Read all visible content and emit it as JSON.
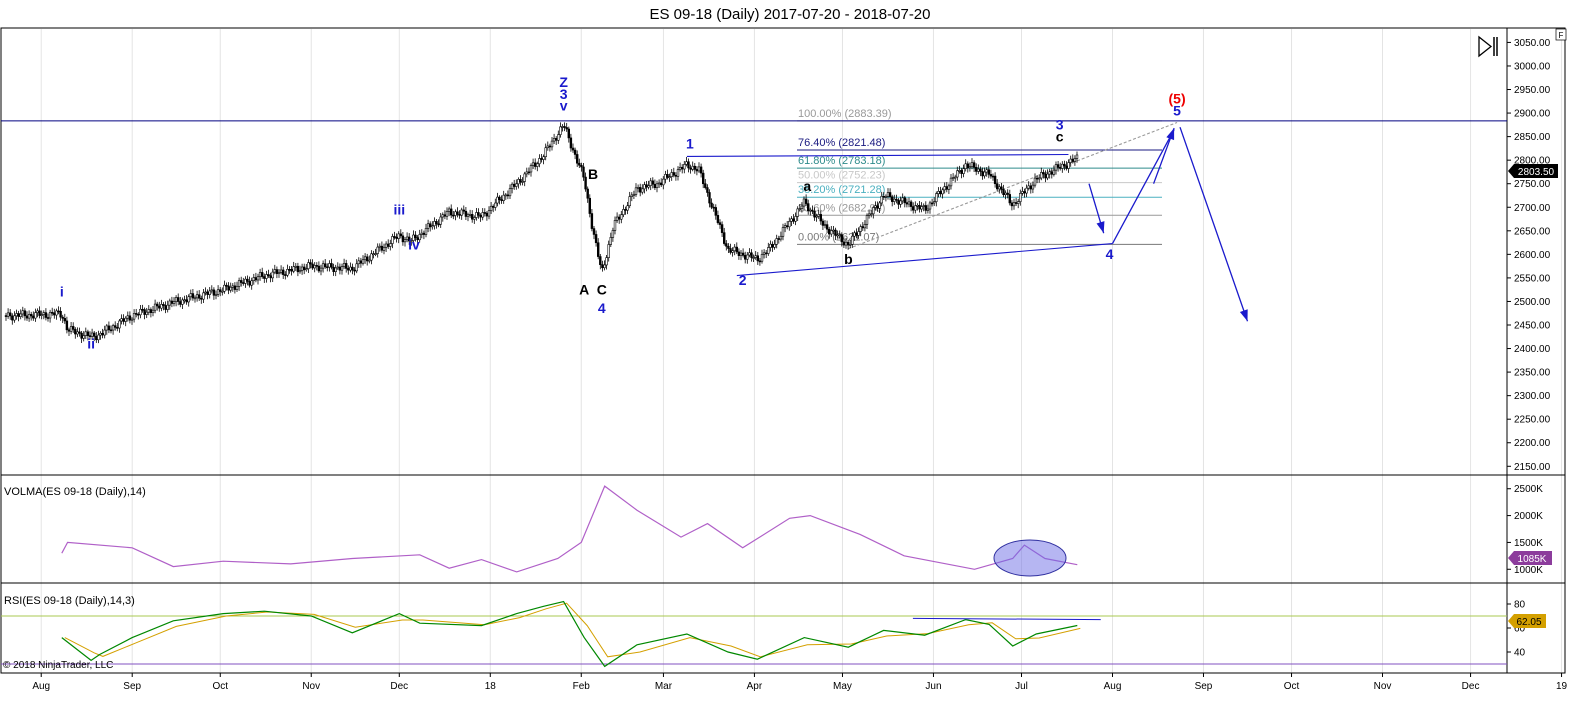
{
  "title": "ES 09-18 (Daily)  2017-07-20 - 2018-07-20",
  "copyright": "© 2018 NinjaTrader, LLC",
  "corner_icon": "F",
  "play_icon": "play-to-end-icon",
  "price_label": "2803.50",
  "volma_label": "VOLMA(ES 09-18 (Daily),14)",
  "volma_value": "1085K",
  "rsi_label": "RSI(ES 09-18 (Daily),14,3)",
  "rsi_value": "62.05",
  "colors": {
    "wave_blue": "#1a1acc",
    "wave_red": "#ee0000",
    "volma": "#b060c8",
    "rsi": "#008800",
    "rsi_avg": "#d4a000",
    "bull": "#ffffff",
    "bear": "#000000",
    "hline": "#000080"
  },
  "fib_labels": [
    {
      "level": "100.00% (2883.39)",
      "price": 2883.39,
      "color": "#999999"
    },
    {
      "level": "76.40% (2821.48)",
      "price": 2821.48,
      "color": "#1a1a80"
    },
    {
      "level": "61.80% (2783.18)",
      "price": 2783.18,
      "color": "#2e8b8b"
    },
    {
      "level": "50.00% (2752.23)",
      "price": 2752.23,
      "color": "#c8c8c8"
    },
    {
      "level": "38.20% (2721.28)",
      "price": 2721.28,
      "color": "#4ab0c0"
    },
    {
      "level": "23.60% (2682.98)",
      "price": 2682.98,
      "color": "#999999"
    },
    {
      "level": "0.00% (2621.07)",
      "price": 2621.07,
      "color": "#777777"
    }
  ],
  "chart_data": [
    {
      "type": "line",
      "title": "ES 09-18 (Daily)  2017-07-20 - 2018-07-20",
      "x_labels": [
        "Aug",
        "Sep",
        "Oct",
        "Nov",
        "Dec",
        "18",
        "Feb",
        "Mar",
        "Apr",
        "May",
        "Jun",
        "Jul",
        "Aug",
        "Sep",
        "Oct",
        "Nov",
        "Dec",
        "19"
      ],
      "y_ticks": [
        "3050.00",
        "3000.00",
        "2950.00",
        "2900.00",
        "2850.00",
        "2800.00",
        "2750.00",
        "2700.00",
        "2650.00",
        "2600.00",
        "2550.00",
        "2500.00",
        "2450.00",
        "2400.00",
        "2350.00",
        "2300.00",
        "2250.00",
        "2200.00",
        "2150.00"
      ],
      "ylim": [
        2140,
        3070
      ],
      "series": [
        {
          "values": [
            [
              "2017-07-20",
              2470
            ],
            [
              "2017-08-01",
              2472
            ],
            [
              "2017-08-08",
              2474
            ],
            [
              "2017-08-10",
              2440
            ],
            [
              "2017-08-18",
              2425
            ],
            [
              "2017-08-21",
              2430
            ],
            [
              "2017-09-01",
              2470
            ],
            [
              "2017-09-15",
              2498
            ],
            [
              "2017-10-02",
              2525
            ],
            [
              "2017-10-16",
              2555
            ],
            [
              "2017-11-01",
              2575
            ],
            [
              "2017-11-15",
              2570
            ],
            [
              "2017-12-01",
              2640
            ],
            [
              "2017-12-05",
              2628
            ],
            [
              "2017-12-18",
              2690
            ],
            [
              "2017-12-29",
              2680
            ],
            [
              "2018-01-10",
              2750
            ],
            [
              "2018-01-19",
              2810
            ],
            [
              "2018-01-26",
              2875
            ],
            [
              "2018-02-02",
              2760
            ],
            [
              "2018-02-05",
              2650
            ],
            [
              "2018-02-08",
              2560
            ],
            [
              "2018-02-12",
              2660
            ],
            [
              "2018-02-20",
              2740
            ],
            [
              "2018-02-27",
              2750
            ],
            [
              "2018-03-09",
              2790
            ],
            [
              "2018-03-13",
              2780
            ],
            [
              "2018-03-23",
              2610
            ],
            [
              "2018-04-02",
              2590
            ],
            [
              "2018-04-06",
              2610
            ],
            [
              "2018-04-18",
              2710
            ],
            [
              "2018-04-25",
              2660
            ],
            [
              "2018-05-03",
              2620
            ],
            [
              "2018-05-15",
              2725
            ],
            [
              "2018-05-29",
              2695
            ],
            [
              "2018-06-12",
              2790
            ],
            [
              "2018-06-20",
              2770
            ],
            [
              "2018-06-28",
              2705
            ],
            [
              "2018-07-06",
              2760
            ],
            [
              "2018-07-20",
              2803.5
            ]
          ]
        }
      ],
      "fib_levels": [
        2883.39,
        2821.48,
        2783.18,
        2752.23,
        2721.28,
        2682.98,
        2621.07
      ],
      "wave_labels": [
        "i",
        "ii",
        "iii",
        "iv",
        "Z",
        "3",
        "v",
        "B",
        "A",
        "C",
        "4",
        "1",
        "2",
        "a",
        "b",
        "3",
        "c",
        "4",
        "(5)",
        "5"
      ],
      "last_price": 2803.5
    },
    {
      "type": "line",
      "title": "VOLMA(ES 09-18 (Daily),14)",
      "y_ticks": [
        "2500K",
        "2000K",
        "1500K",
        "1000K"
      ],
      "ylim": [
        800,
        2700
      ],
      "series": [
        {
          "values": [
            [
              "2017-08-08",
              1300
            ],
            [
              "2017-08-10",
              1500
            ],
            [
              "2017-09-01",
              1400
            ],
            [
              "2017-09-15",
              1050
            ],
            [
              "2017-10-02",
              1150
            ],
            [
              "2017-10-25",
              1100
            ],
            [
              "2017-11-15",
              1200
            ],
            [
              "2017-12-08",
              1270
            ],
            [
              "2017-12-18",
              1020
            ],
            [
              "2017-12-29",
              1180
            ],
            [
              "2018-01-10",
              950
            ],
            [
              "2018-01-24",
              1200
            ],
            [
              "2018-02-01",
              1500
            ],
            [
              "2018-02-09",
              2550
            ],
            [
              "2018-02-20",
              2100
            ],
            [
              "2018-03-07",
              1600
            ],
            [
              "2018-03-16",
              1850
            ],
            [
              "2018-03-28",
              1400
            ],
            [
              "2018-04-13",
              1950
            ],
            [
              "2018-04-20",
              2000
            ],
            [
              "2018-05-07",
              1650
            ],
            [
              "2018-05-22",
              1250
            ],
            [
              "2018-06-15",
              1000
            ],
            [
              "2018-06-28",
              1200
            ],
            [
              "2018-07-02",
              1450
            ],
            [
              "2018-07-09",
              1200
            ],
            [
              "2018-07-20",
              1085
            ]
          ]
        }
      ],
      "last_value": "1085K"
    },
    {
      "type": "line",
      "title": "RSI(ES 09-18 (Daily),14,3)",
      "y_ticks": [
        "80",
        "60",
        "40"
      ],
      "ylim": [
        25,
        95
      ],
      "hlines": [
        70,
        30
      ],
      "series": [
        {
          "values": [
            [
              "2017-08-08",
              52
            ],
            [
              "2017-08-18",
              33
            ],
            [
              "2017-08-21",
              38
            ],
            [
              "2017-09-01",
              52
            ],
            [
              "2017-09-15",
              66
            ],
            [
              "2017-10-02",
              72
            ],
            [
              "2017-10-16",
              74
            ],
            [
              "2017-11-01",
              70
            ],
            [
              "2017-11-15",
              56
            ],
            [
              "2017-12-01",
              72
            ],
            [
              "2017-12-08",
              64
            ],
            [
              "2017-12-29",
              62
            ],
            [
              "2018-01-10",
              72
            ],
            [
              "2018-01-19",
              78
            ],
            [
              "2018-01-26",
              82
            ],
            [
              "2018-02-02",
              52
            ],
            [
              "2018-02-09",
              28
            ],
            [
              "2018-02-20",
              46
            ],
            [
              "2018-03-09",
              55
            ],
            [
              "2018-03-23",
              40
            ],
            [
              "2018-04-02",
              34
            ],
            [
              "2018-04-18",
              52
            ],
            [
              "2018-05-03",
              44
            ],
            [
              "2018-05-15",
              58
            ],
            [
              "2018-05-29",
              54
            ],
            [
              "2018-06-12",
              67
            ],
            [
              "2018-06-20",
              63
            ],
            [
              "2018-06-28",
              45
            ],
            [
              "2018-07-06",
              55
            ],
            [
              "2018-07-20",
              62.05
            ]
          ]
        }
      ],
      "last_value": 62.05
    }
  ]
}
